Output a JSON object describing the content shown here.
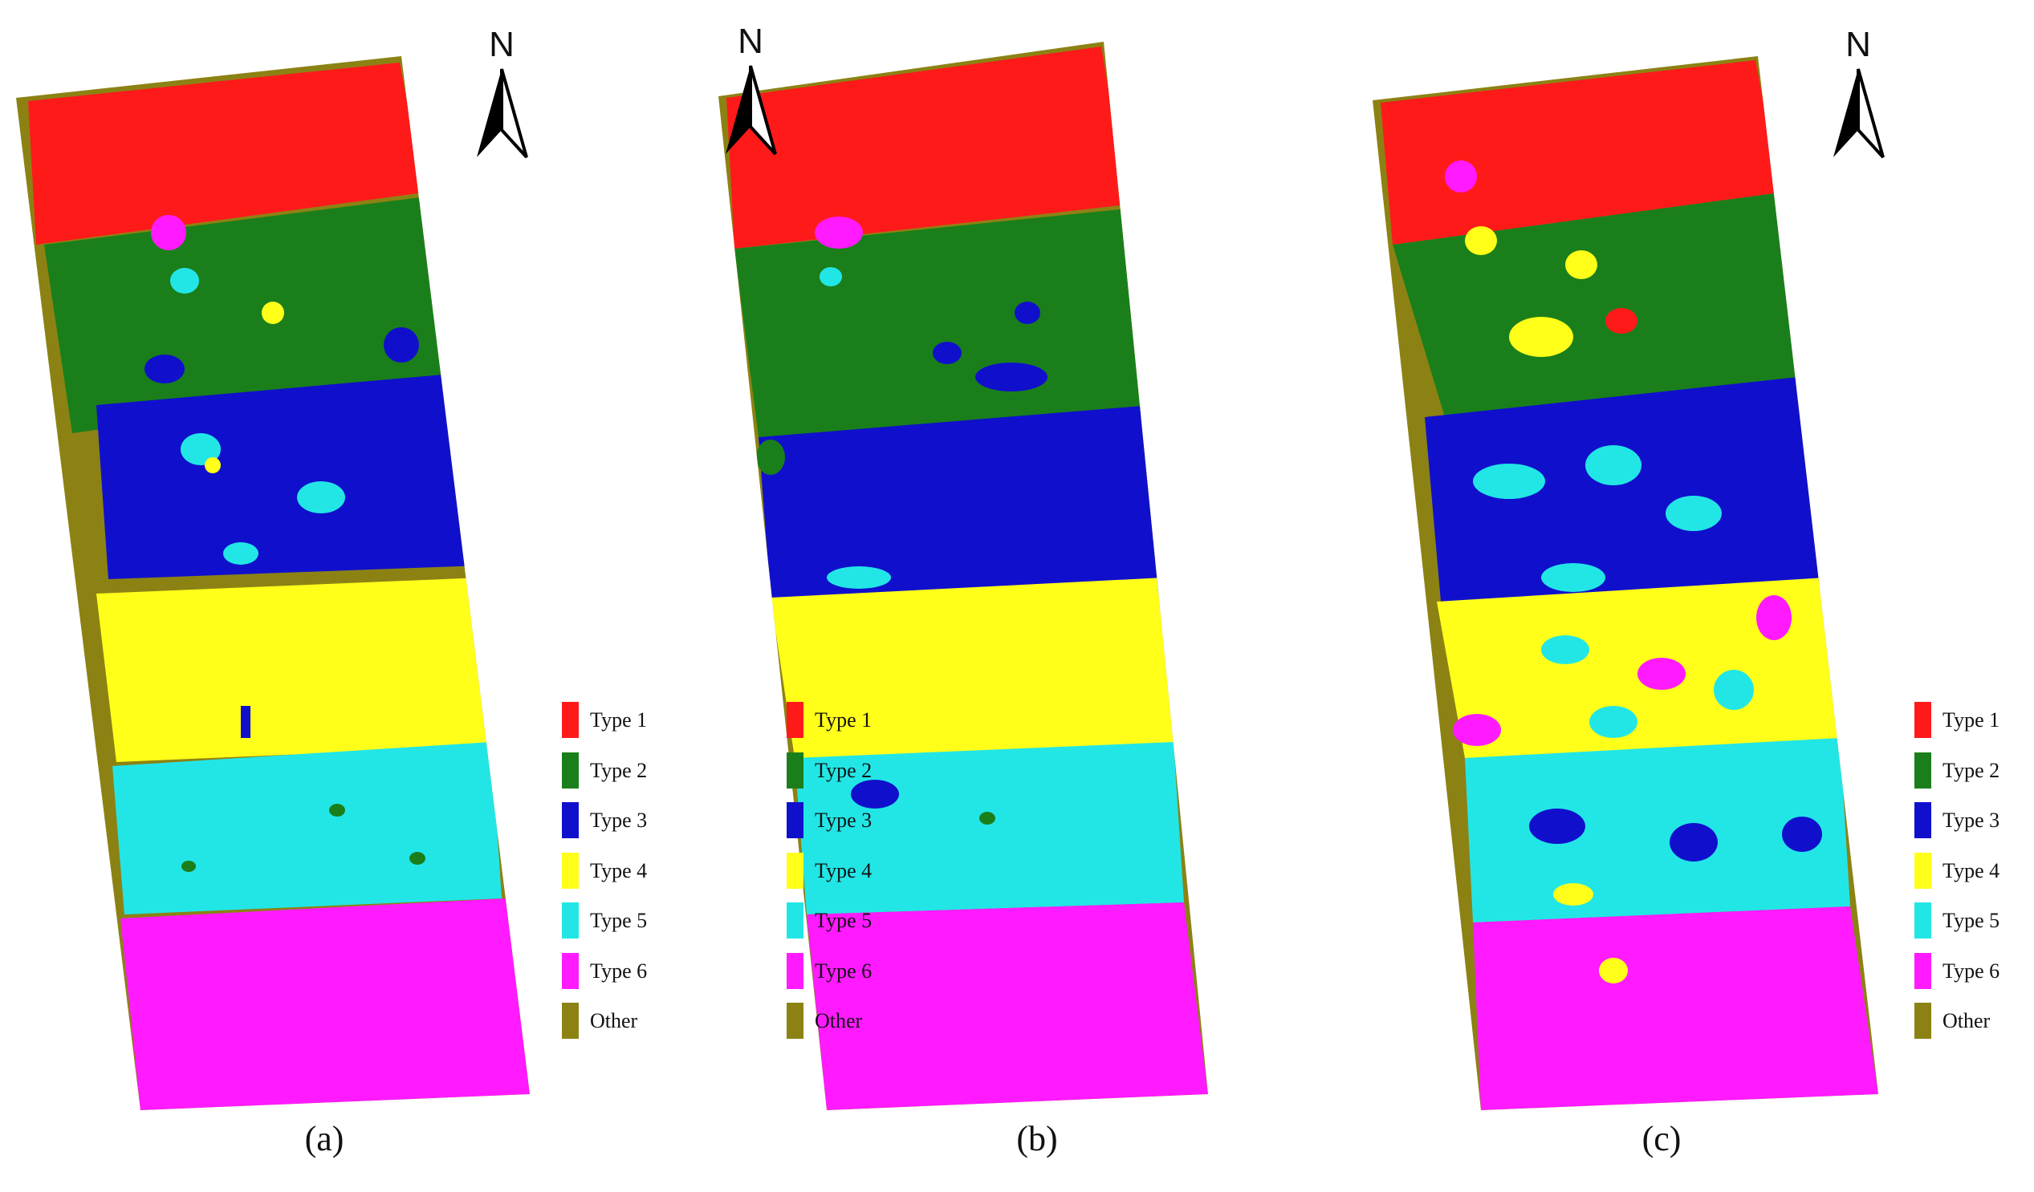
{
  "panels": [
    {
      "label": "(a)",
      "legend": [
        {
          "label": "Type 1",
          "color": "#ff1a1a"
        },
        {
          "label": "Type 2",
          "color": "#1a7f1a"
        },
        {
          "label": "Type 3",
          "color": "#1010cc"
        },
        {
          "label": "Type 4",
          "color": "#ffff1a"
        },
        {
          "label": "Type 5",
          "color": "#22e6e6"
        },
        {
          "label": "Type 6",
          "color": "#ff1aff"
        },
        {
          "label": "Other",
          "color": "#8c8214"
        }
      ],
      "north": "N"
    },
    {
      "label": "(b)",
      "legend": [
        {
          "label": "Type 1",
          "color": "#ff1a1a"
        },
        {
          "label": "Type 2",
          "color": "#1a7f1a"
        },
        {
          "label": "Type 3",
          "color": "#1010cc"
        },
        {
          "label": "Type 4",
          "color": "#ffff1a"
        },
        {
          "label": "Type 5",
          "color": "#22e6e6"
        },
        {
          "label": "Type 6",
          "color": "#ff1aff"
        },
        {
          "label": "Other",
          "color": "#8c8214"
        }
      ],
      "north": "N"
    },
    {
      "label": "(c)",
      "legend": [
        {
          "label": "Type 1",
          "color": "#ff1a1a"
        },
        {
          "label": "Type 2",
          "color": "#1a7f1a"
        },
        {
          "label": "Type 3",
          "color": "#1010cc"
        },
        {
          "label": "Type 4",
          "color": "#ffff1a"
        },
        {
          "label": "Type 5",
          "color": "#22e6e6"
        },
        {
          "label": "Type 6",
          "color": "#ff1aff"
        },
        {
          "label": "Other",
          "color": "#8c8214"
        }
      ],
      "north": "N"
    }
  ]
}
